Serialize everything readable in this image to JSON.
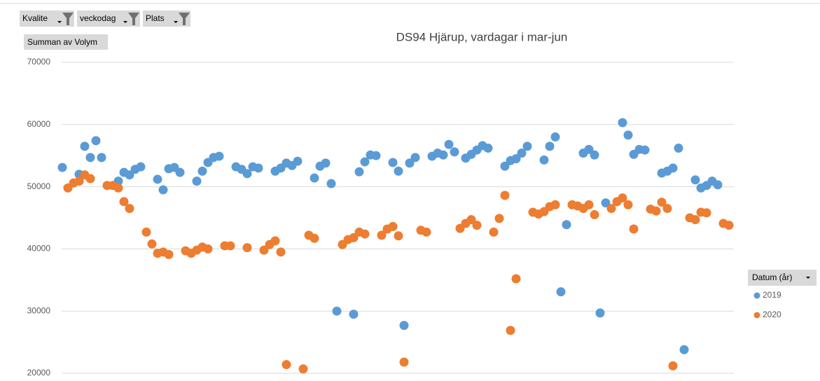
{
  "chart_data": {
    "type": "scatter",
    "title": "DS94 Hjärup, vardagar i mar-jun",
    "filters": [
      "Kvalite",
      "veckodag",
      "Plats"
    ],
    "value_field": "Summan av Volym",
    "legend_title": "Datum (år)",
    "ylim": [
      20000,
      70000
    ],
    "yticks": [
      20000,
      30000,
      40000,
      50000,
      60000,
      70000
    ],
    "grid": true,
    "series": [
      {
        "name": "2019",
        "color": "#5b9bd5",
        "values": [
          53100,
          null,
          null,
          52000,
          56500,
          54700,
          57400,
          54700,
          null,
          null,
          50900,
          52300,
          51900,
          52800,
          53200,
          null,
          null,
          51200,
          49500,
          52900,
          53100,
          52300,
          null,
          null,
          50900,
          52500,
          53900,
          54700,
          54900,
          null,
          null,
          53200,
          52800,
          52100,
          53200,
          53000,
          null,
          null,
          52500,
          53000,
          53800,
          53400,
          54100,
          null,
          null,
          51400,
          53300,
          53800,
          50500,
          30000,
          null,
          null,
          29500,
          52400,
          54000,
          55100,
          55000,
          null,
          null,
          53900,
          52500,
          27700,
          53800,
          54700,
          null,
          null,
          54900,
          55400,
          55100,
          56800,
          55600,
          null,
          54600,
          55200,
          55900,
          56600,
          56200,
          null,
          null,
          53300,
          54200,
          54500,
          55400,
          56500,
          null,
          null,
          54300,
          56500,
          58000,
          33100,
          43900,
          null,
          null,
          55400,
          56000,
          55100,
          29700,
          47400,
          null,
          null,
          60300,
          58300,
          55200,
          56000,
          55900,
          null,
          null,
          52200,
          52500,
          53000,
          56200,
          23800,
          null,
          51100,
          49800,
          50200,
          50900,
          50300,
          null,
          null
        ]
      },
      {
        "name": "2020",
        "color": "#ed7d31",
        "values": [
          null,
          49800,
          50600,
          50900,
          51900,
          51300,
          null,
          null,
          50200,
          50200,
          49800,
          47600,
          46500,
          null,
          null,
          42700,
          40800,
          39300,
          39500,
          39100,
          null,
          null,
          39700,
          39300,
          39800,
          40300,
          40000,
          null,
          null,
          40500,
          40500,
          null,
          null,
          40200,
          null,
          null,
          39800,
          40700,
          41300,
          39500,
          21400,
          null,
          null,
          20700,
          42200,
          41700,
          null,
          null,
          null,
          null,
          40700,
          41500,
          41800,
          42700,
          42400,
          null,
          null,
          42200,
          43200,
          43600,
          42100,
          21800,
          null,
          null,
          43000,
          42700,
          null,
          null,
          null,
          null,
          null,
          43300,
          44100,
          44700,
          43800,
          null,
          null,
          42700,
          44900,
          48600,
          26900,
          35200,
          null,
          null,
          45900,
          45600,
          46000,
          46800,
          47100,
          null,
          null,
          47100,
          46900,
          46500,
          47100,
          45500,
          null,
          null,
          46500,
          47600,
          48200,
          47100,
          43200,
          null,
          null,
          46400,
          46100,
          47500,
          46500,
          21200,
          null,
          null,
          45000,
          44700,
          45900,
          45800,
          null,
          null,
          44100,
          43800
        ]
      }
    ]
  }
}
